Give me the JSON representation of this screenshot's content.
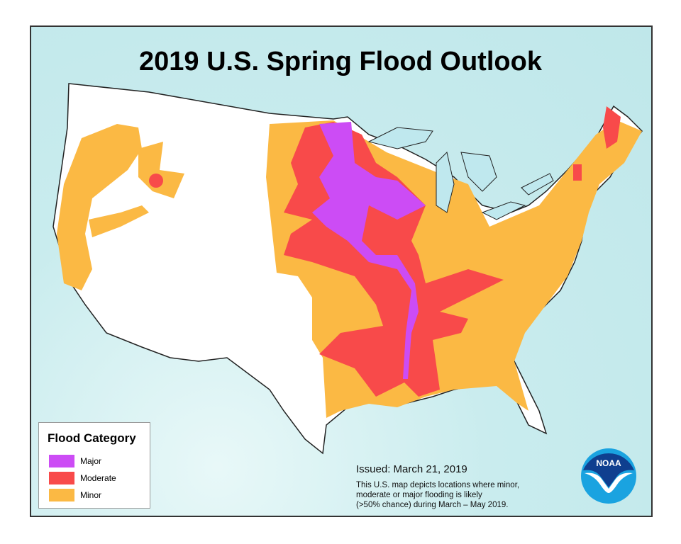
{
  "title": "2019 U.S. Spring Flood Outlook",
  "legend": {
    "title": "Flood Category",
    "items": [
      {
        "label": "Major",
        "color": "#cc4cf5"
      },
      {
        "label": "Moderate",
        "color": "#f84a4a"
      },
      {
        "label": "Minor",
        "color": "#fbb944"
      }
    ]
  },
  "issued": "Issued:  March 21, 2019",
  "note_lines": [
    "This U.S.  map depicts locations where minor,",
    "moderate or major flooding is likely",
    "(>50% chance) during March  – May  2019."
  ],
  "logo": {
    "text": "NOAA",
    "colors": {
      "dark": "#0f3f8f",
      "light": "#1aa3e0"
    }
  },
  "colors": {
    "water": "#c9ecee",
    "land": "#ffffff",
    "lakes": "#bfe8ee"
  }
}
